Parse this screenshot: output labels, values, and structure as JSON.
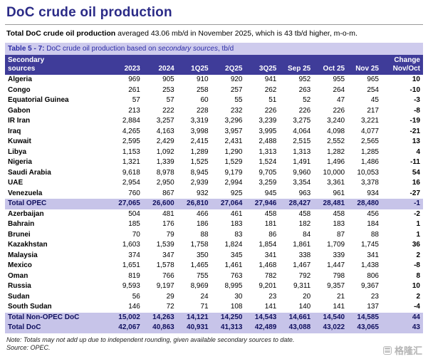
{
  "page": {
    "title": "DoC crude oil production",
    "subtitle": {
      "bold": "Total DoC crude oil production",
      "rest": " averaged 43.06 mb/d in November 2025, which is 43 tb/d higher, m-o-m."
    }
  },
  "table": {
    "caption": {
      "bold": "Table 5 - 7:",
      "lead": " DoC crude oil production based on ",
      "italic": "secondary sources",
      "tail": ", tb/d"
    },
    "header": {
      "label_line1": "Secondary",
      "label_line2": "sources",
      "columns": [
        "2023",
        "2024",
        "1Q25",
        "2Q25",
        "3Q25",
        "Sep 25",
        "Oct 25",
        "Nov 25"
      ],
      "change_line1": "Change",
      "change_line2": "Nov/Oct"
    },
    "rows": [
      {
        "label": "Algeria",
        "values": [
          "969",
          "905",
          "910",
          "920",
          "941",
          "952",
          "955",
          "965"
        ],
        "change": "10",
        "type": "normal"
      },
      {
        "label": "Congo",
        "values": [
          "261",
          "253",
          "258",
          "257",
          "262",
          "263",
          "264",
          "254"
        ],
        "change": "-10",
        "type": "normal"
      },
      {
        "label": "Equatorial Guinea",
        "values": [
          "57",
          "57",
          "60",
          "55",
          "51",
          "52",
          "47",
          "45"
        ],
        "change": "-3",
        "type": "normal"
      },
      {
        "label": "Gabon",
        "values": [
          "213",
          "222",
          "228",
          "232",
          "226",
          "226",
          "226",
          "217"
        ],
        "change": "-8",
        "type": "normal"
      },
      {
        "label": "IR Iran",
        "values": [
          "2,884",
          "3,257",
          "3,319",
          "3,296",
          "3,239",
          "3,275",
          "3,240",
          "3,221"
        ],
        "change": "-19",
        "type": "normal"
      },
      {
        "label": "Iraq",
        "values": [
          "4,265",
          "4,163",
          "3,998",
          "3,957",
          "3,995",
          "4,064",
          "4,098",
          "4,077"
        ],
        "change": "-21",
        "type": "normal"
      },
      {
        "label": "Kuwait",
        "values": [
          "2,595",
          "2,429",
          "2,415",
          "2,431",
          "2,488",
          "2,515",
          "2,552",
          "2,565"
        ],
        "change": "13",
        "type": "normal"
      },
      {
        "label": "Libya",
        "values": [
          "1,153",
          "1,092",
          "1,289",
          "1,290",
          "1,313",
          "1,313",
          "1,282",
          "1,285"
        ],
        "change": "4",
        "type": "normal"
      },
      {
        "label": "Nigeria",
        "values": [
          "1,321",
          "1,339",
          "1,525",
          "1,529",
          "1,524",
          "1,491",
          "1,496",
          "1,486"
        ],
        "change": "-11",
        "type": "normal"
      },
      {
        "label": "Saudi Arabia",
        "values": [
          "9,618",
          "8,978",
          "8,945",
          "9,179",
          "9,705",
          "9,960",
          "10,000",
          "10,053"
        ],
        "change": "54",
        "type": "normal"
      },
      {
        "label": "UAE",
        "values": [
          "2,954",
          "2,950",
          "2,939",
          "2,994",
          "3,259",
          "3,354",
          "3,361",
          "3,378"
        ],
        "change": "16",
        "type": "normal"
      },
      {
        "label": "Venezuela",
        "values": [
          "760",
          "867",
          "932",
          "925",
          "945",
          "963",
          "961",
          "934"
        ],
        "change": "-27",
        "type": "normal"
      },
      {
        "label": "Total  OPEC",
        "values": [
          "27,065",
          "26,600",
          "26,810",
          "27,064",
          "27,946",
          "28,427",
          "28,481",
          "28,480"
        ],
        "change": "-1",
        "type": "total"
      },
      {
        "label": "Azerbaijan",
        "values": [
          "504",
          "481",
          "466",
          "461",
          "458",
          "458",
          "458",
          "456"
        ],
        "change": "-2",
        "type": "normal"
      },
      {
        "label": "Bahrain",
        "values": [
          "185",
          "176",
          "186",
          "183",
          "181",
          "182",
          "183",
          "184"
        ],
        "change": "1",
        "type": "normal"
      },
      {
        "label": "Brunei",
        "values": [
          "70",
          "79",
          "88",
          "83",
          "86",
          "84",
          "87",
          "88"
        ],
        "change": "1",
        "type": "normal"
      },
      {
        "label": "Kazakhstan",
        "values": [
          "1,603",
          "1,539",
          "1,758",
          "1,824",
          "1,854",
          "1,861",
          "1,709",
          "1,745"
        ],
        "change": "36",
        "type": "normal"
      },
      {
        "label": "Malaysia",
        "values": [
          "374",
          "347",
          "350",
          "345",
          "341",
          "338",
          "339",
          "341"
        ],
        "change": "2",
        "type": "normal"
      },
      {
        "label": "Mexico",
        "values": [
          "1,651",
          "1,578",
          "1,465",
          "1,461",
          "1,468",
          "1,467",
          "1,447",
          "1,438"
        ],
        "change": "-8",
        "type": "normal"
      },
      {
        "label": "Oman",
        "values": [
          "819",
          "766",
          "755",
          "763",
          "782",
          "792",
          "798",
          "806"
        ],
        "change": "8",
        "type": "normal"
      },
      {
        "label": "Russia",
        "values": [
          "9,593",
          "9,197",
          "8,969",
          "8,995",
          "9,201",
          "9,311",
          "9,357",
          "9,367"
        ],
        "change": "10",
        "type": "normal"
      },
      {
        "label": "Sudan",
        "values": [
          "56",
          "29",
          "24",
          "30",
          "23",
          "20",
          "21",
          "23"
        ],
        "change": "2",
        "type": "normal"
      },
      {
        "label": "South Sudan",
        "values": [
          "146",
          "72",
          "71",
          "108",
          "141",
          "140",
          "141",
          "137"
        ],
        "change": "-4",
        "type": "normal"
      },
      {
        "label": "Total Non-OPEC DoC",
        "values": [
          "15,002",
          "14,263",
          "14,121",
          "14,250",
          "14,543",
          "14,661",
          "14,540",
          "14,585"
        ],
        "change": "44",
        "type": "total"
      },
      {
        "label": "Total DoC",
        "values": [
          "42,067",
          "40,863",
          "40,931",
          "41,313",
          "42,489",
          "43,088",
          "43,022",
          "43,065"
        ],
        "change": "43",
        "type": "total"
      }
    ]
  },
  "footnotes": {
    "note": "Note: Totals may not add up due to independent rounding, given available secondary sources to date.",
    "source": "Source: OPEC."
  },
  "watermark": {
    "text": "格隆汇"
  },
  "colors": {
    "header_bg": "#3f3c99",
    "caption_bg": "#cecbed",
    "total_row_bg": "#c7c4e9",
    "accent_text": "#2b2b87"
  }
}
